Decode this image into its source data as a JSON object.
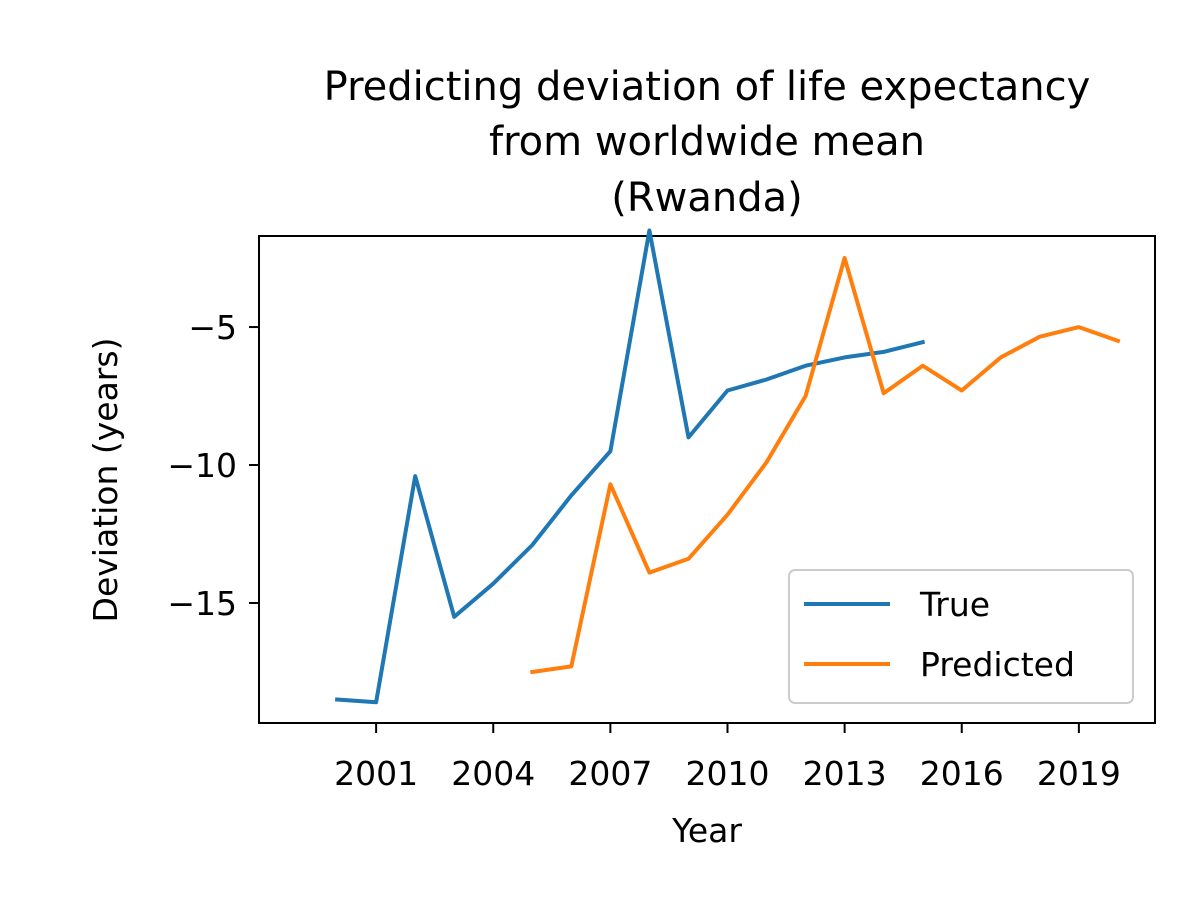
{
  "chart_data": {
    "type": "line",
    "title_lines": [
      "Predicting deviation of life expectancy",
      "from worldwide mean",
      "(Rwanda)"
    ],
    "xlabel": "Year",
    "ylabel": "Deviation (years)",
    "xlim": [
      1998.0,
      2020.95
    ],
    "ylim": [
      -19.35,
      -1.7
    ],
    "xticks": [
      2001,
      2004,
      2007,
      2010,
      2013,
      2016,
      2019
    ],
    "xtick_labels": [
      "2001",
      "2004",
      "2007",
      "2010",
      "2013",
      "2016",
      "2019"
    ],
    "yticks": [
      -5,
      -10,
      -15
    ],
    "ytick_labels": [
      "−5",
      "−10",
      "−15"
    ],
    "legend_position": "lower-right",
    "series": [
      {
        "name": "True",
        "color": "#1f77b4",
        "x": [
          2000,
          2001,
          2002,
          2003,
          2004,
          2005,
          2006,
          2007,
          2008,
          2009,
          2010,
          2011,
          2012,
          2013,
          2014,
          2015
        ],
        "y": [
          -18.5,
          -18.6,
          -10.4,
          -15.5,
          -14.3,
          -12.9,
          -11.1,
          -9.5,
          -1.5,
          -9.0,
          -7.3,
          -6.9,
          -6.4,
          -6.1,
          -5.9,
          -5.55
        ]
      },
      {
        "name": "Predicted",
        "color": "#ff7f0e",
        "x": [
          2005,
          2006,
          2007,
          2008,
          2009,
          2010,
          2011,
          2012,
          2013,
          2014,
          2015,
          2016,
          2017,
          2018,
          2019,
          2020
        ],
        "y": [
          -17.5,
          -17.3,
          -10.7,
          -13.9,
          -13.4,
          -11.8,
          -9.9,
          -7.5,
          -2.5,
          -7.4,
          -6.4,
          -7.3,
          -6.1,
          -5.35,
          -5.0,
          -5.5
        ]
      }
    ]
  }
}
